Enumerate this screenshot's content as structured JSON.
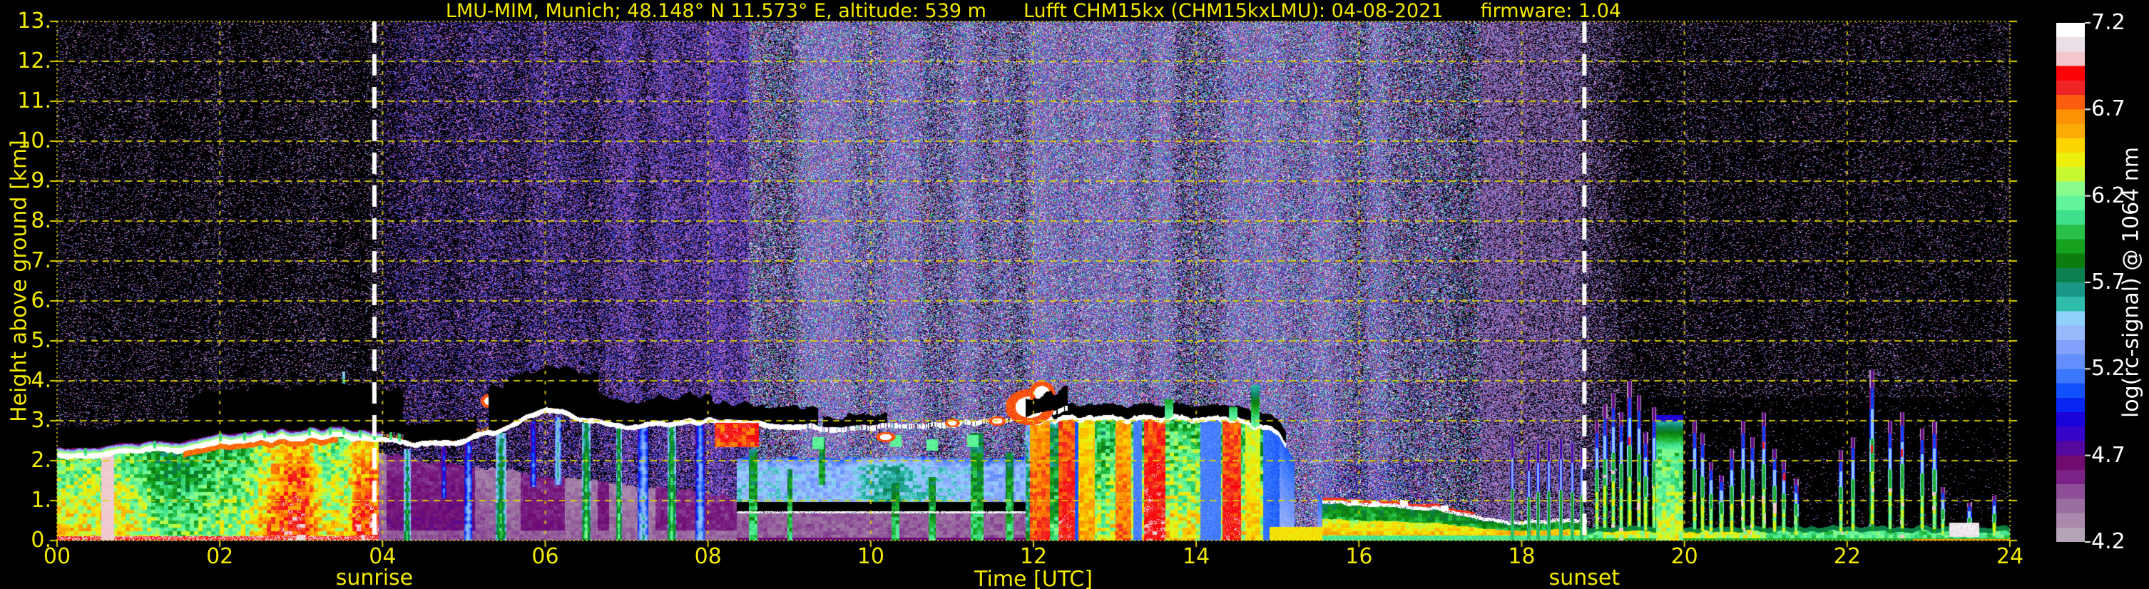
{
  "header": {
    "title_parts": [
      "LMU-MIM, Munich; 48.148° N 11.573° E, altitude: 539 m",
      "Lufft CHM15kx (CHM15kxLMU): 04-08-2021",
      "firmware: 1.04"
    ]
  },
  "axes": {
    "x_label": "Time [UTC]",
    "x_ticks": [
      "00",
      "02",
      "04",
      "06",
      "08",
      "10",
      "12",
      "14",
      "16",
      "18",
      "20",
      "22",
      "24"
    ],
    "x_range_hours": [
      0,
      24
    ],
    "y_label": "Height above ground [km]",
    "y_ticks": [
      "0.",
      "1.",
      "2.",
      "3.",
      "4.",
      "5.",
      "6.",
      "7.",
      "8.",
      "9.",
      "10.",
      "11.",
      "12.",
      "13."
    ],
    "y_range_km": [
      0,
      13
    ],
    "grid": "dashed yellow, 2 h vertical / 1 km horizontal"
  },
  "annotations": {
    "sunrise_label": "sunrise",
    "sunrise_time_utc": 3.9,
    "sunset_label": "sunset",
    "sunset_time_utc": 18.77
  },
  "colorbar": {
    "label": "log(rc-signal) @ 1064 nm",
    "tick_labels": [
      "7.2",
      "6.7",
      "6.2",
      "5.7",
      "5.2",
      "4.7",
      "4.2"
    ],
    "tick_values": [
      7.2,
      6.7,
      6.2,
      5.7,
      5.2,
      4.7,
      4.2
    ],
    "range": [
      4.2,
      7.2
    ],
    "palette_low_to_high": [
      "#b5a3b7",
      "#a98aad",
      "#9b6ea1",
      "#8d4e97",
      "#7b2287",
      "#700c6e",
      "#55089e",
      "#3604c8",
      "#1a02da",
      "#0726f2",
      "#1150fa",
      "#3a77fd",
      "#638ffd",
      "#82a1fd",
      "#98b9fc",
      "#8ed2fc",
      "#2fbcaa",
      "#1b9787",
      "#0d8050",
      "#0c7c10",
      "#15a01e",
      "#28c048",
      "#3fe08c",
      "#62f49a",
      "#8afc8c",
      "#c8f830",
      "#ecf00c",
      "#fcd400",
      "#fbab06",
      "#fb9203",
      "#fb5c0d",
      "#ef2426",
      "#fb0307",
      "#f2c6cb",
      "#e9dfe7",
      "#ffffff"
    ]
  },
  "colors": {
    "background": "#000000",
    "axis_text": "#f2e900",
    "grid": "#e0d400",
    "colorbar_text": "#ffffff",
    "sun_line": "#ffffff"
  },
  "chart_data": {
    "type": "heatmap",
    "title": "Ceilometer attenuated backscatter quicklook, Munich, 04-08-2021",
    "xlabel": "Time [UTC]",
    "ylabel": "Height above ground [km]",
    "xlim": [
      0,
      24
    ],
    "ylim": [
      0,
      13
    ],
    "value_label": "log(rc-signal) @ 1064 nm",
    "value_range": [
      4.2,
      7.2
    ],
    "mixed_layer_top": {
      "t": [
        0,
        0.5,
        1,
        1.5,
        2,
        2.5,
        3,
        3.5,
        3.95
      ],
      "top_km": [
        2.15,
        2.2,
        2.3,
        2.35,
        2.5,
        2.55,
        2.6,
        2.62,
        2.6
      ]
    },
    "haze_top": {
      "t": [
        3.95,
        4.5,
        5.5,
        6.5,
        7.5,
        8.35
      ],
      "top_km": [
        2.25,
        2.0,
        1.75,
        1.5,
        1.3,
        1.1
      ]
    },
    "cloud_base": {
      "t": [
        0,
        0.5,
        1,
        1.5,
        2,
        2.5,
        3,
        3.5,
        4,
        4.3,
        4.7,
        5,
        5.4,
        5.7,
        6,
        6.2,
        6.5,
        7,
        7.3,
        7.7,
        8,
        8.4,
        8.8,
        9.2,
        9.6,
        10,
        10.4,
        10.8,
        11.2,
        11.6,
        12,
        12.2,
        12.4
      ],
      "base_km": [
        2.1,
        2.15,
        2.25,
        2.3,
        2.5,
        2.55,
        2.6,
        2.62,
        2.5,
        2.45,
        2.4,
        2.5,
        2.75,
        3.0,
        3.3,
        3.25,
        3.0,
        2.85,
        2.9,
        2.95,
        3.0,
        2.95,
        2.9,
        2.85,
        2.8,
        2.85,
        2.9,
        2.9,
        2.95,
        3.0,
        3.1,
        3.2,
        3.3
      ]
    },
    "attenuation_zones": [
      [
        0.0,
        1.6,
        0.7
      ],
      [
        1.6,
        4.25,
        1.3
      ],
      [
        4.25,
        5.15,
        0.55
      ],
      [
        5.3,
        6.65,
        1.15
      ],
      [
        6.65,
        8.05,
        0.65
      ],
      [
        8.05,
        9.35,
        0.5
      ],
      [
        9.4,
        10.2,
        0.32
      ],
      [
        11.9,
        12.45,
        0.5
      ]
    ],
    "spires": [
      [
        0.35,
        2.5
      ],
      [
        1.2,
        2.6
      ],
      [
        2.0,
        2.9
      ],
      [
        2.3,
        3.0
      ],
      [
        2.55,
        3.05
      ],
      [
        3.1,
        3.35
      ],
      [
        3.35,
        3.0
      ],
      [
        3.52,
        4.25
      ],
      [
        3.72,
        3.0
      ],
      [
        3.9,
        3.45
      ],
      [
        4.1,
        3.4
      ],
      [
        4.2,
        2.85
      ]
    ],
    "virga": [
      [
        4.3,
        0.09,
        2.3,
        6.0,
        1
      ],
      [
        4.75,
        0.07,
        2.35,
        5.35,
        0
      ],
      [
        5.05,
        0.1,
        2.5,
        5.5,
        1
      ],
      [
        5.45,
        0.13,
        2.7,
        6.05,
        1
      ],
      [
        5.85,
        0.08,
        3.0,
        5.4,
        0
      ],
      [
        6.15,
        0.08,
        3.1,
        5.8,
        0
      ],
      [
        6.5,
        0.11,
        2.95,
        6.15,
        1
      ],
      [
        6.9,
        0.07,
        2.85,
        6.2,
        1
      ],
      [
        7.2,
        0.13,
        2.85,
        5.6,
        1
      ],
      [
        7.55,
        0.11,
        2.9,
        6.15,
        1
      ],
      [
        7.9,
        0.11,
        2.95,
        5.5,
        1
      ]
    ],
    "cloud_blobs": [
      [
        5.32,
        3.5,
        0.12,
        0.18
      ],
      [
        5.55,
        3.62,
        0.1,
        0.15
      ],
      [
        10.18,
        2.6,
        0.12,
        0.13
      ],
      [
        11.0,
        2.95,
        0.09,
        0.11
      ],
      [
        11.55,
        3.0,
        0.11,
        0.12
      ],
      [
        11.95,
        3.35,
        0.3,
        0.45
      ],
      [
        12.1,
        3.7,
        0.16,
        0.3
      ]
    ],
    "red_cloud": [
      8.08,
      8.62,
      2.35,
      3.02
    ],
    "green_patches": [
      [
        9.35,
        2.55
      ],
      [
        10.3,
        2.6
      ],
      [
        10.75,
        2.5
      ],
      [
        11.25,
        2.6
      ]
    ],
    "morning_columns": [
      [
        8.55,
        0.1,
        2.3,
        0
      ],
      [
        9.0,
        0.06,
        1.8,
        0
      ],
      [
        9.4,
        0.08,
        2.6,
        1.4
      ],
      [
        10.3,
        0.1,
        1.45,
        0
      ],
      [
        10.75,
        0.09,
        1.6,
        0
      ],
      [
        11.3,
        0.16,
        2.7,
        0
      ],
      [
        11.7,
        0.1,
        2.2,
        0
      ]
    ],
    "morning_layers": {
      "blue_top": 2.08,
      "blue_bot": 0.98,
      "black_top": 0.98,
      "black_bot": 0.75,
      "white_line": 0.72,
      "mauve_top": 0.68
    },
    "convective": {
      "top": {
        "t": [
          11.9,
          12.5,
          13.5,
          14.5,
          15.0,
          15.3,
          15.55
        ],
        "top_km": [
          3.0,
          3.05,
          3.05,
          3.05,
          2.7,
          1.7,
          1.0
        ]
      },
      "cores": [
        [
          11.95,
          12.2,
          6.78
        ],
        [
          12.3,
          12.5,
          6.88
        ],
        [
          12.55,
          12.75,
          6.6
        ],
        [
          13.0,
          13.2,
          6.72
        ],
        [
          13.35,
          13.62,
          6.92
        ],
        [
          14.32,
          14.55,
          6.88
        ],
        [
          14.6,
          14.78,
          6.5
        ]
      ],
      "gaps": [
        [
          12.5,
          12.56
        ],
        [
          13.22,
          13.33
        ],
        [
          14.05,
          14.3
        ],
        [
          14.82,
          15.02
        ],
        [
          15.2,
          15.48
        ]
      ],
      "towers": [
        [
          12.05,
          3.6
        ],
        [
          13.66,
          3.55
        ],
        [
          14.45,
          3.35
        ],
        [
          14.72,
          3.9
        ]
      ]
    },
    "evening": {
      "top": {
        "t": [
          15.55,
          16,
          16.5,
          17,
          17.4,
          17.7,
          18,
          18.3,
          18.6,
          18.8
        ],
        "top_km": [
          1.0,
          0.92,
          0.88,
          0.8,
          0.62,
          0.5,
          0.48,
          0.5,
          0.52,
          0.5
        ]
      },
      "white_flecks": [
        [
          15.95,
          0.95
        ],
        [
          16.2,
          0.92
        ],
        [
          16.55,
          0.95
        ],
        [
          17.05,
          0.82
        ]
      ],
      "spikes": [
        [
          17.88,
          2.6
        ],
        [
          18.08,
          2.2
        ],
        [
          18.2,
          2.45
        ],
        [
          18.33,
          2.5
        ],
        [
          18.48,
          2.55
        ],
        [
          18.62,
          2.45
        ],
        [
          18.73,
          2.3
        ]
      ]
    },
    "night": {
      "plumes": [
        [
          18.92,
          2.9,
          0
        ],
        [
          19.02,
          3.3,
          0
        ],
        [
          19.12,
          3.55,
          0
        ],
        [
          19.22,
          3.1,
          0
        ],
        [
          19.32,
          3.85,
          2.5
        ],
        [
          19.44,
          3.5,
          0
        ],
        [
          19.52,
          2.6,
          0
        ],
        [
          19.62,
          3.2,
          0
        ],
        [
          20.12,
          2.9,
          0
        ],
        [
          20.22,
          2.6,
          0
        ],
        [
          20.32,
          1.9,
          0
        ],
        [
          20.45,
          1.6,
          0
        ],
        [
          20.58,
          2.2,
          0
        ],
        [
          20.72,
          2.9,
          0
        ],
        [
          20.83,
          2.5,
          0
        ],
        [
          20.97,
          3.1,
          2.4
        ],
        [
          21.1,
          2.2,
          0
        ],
        [
          21.22,
          1.9,
          1.6
        ],
        [
          21.37,
          1.5,
          0
        ],
        [
          21.92,
          2.2,
          0
        ],
        [
          22.07,
          2.5,
          0
        ],
        [
          22.3,
          4.1,
          2.3
        ],
        [
          22.52,
          2.9,
          0
        ],
        [
          22.67,
          3.1,
          2.2
        ],
        [
          22.92,
          2.7,
          0
        ],
        [
          23.07,
          2.9,
          0
        ],
        [
          23.17,
          1.3,
          0
        ],
        [
          23.5,
          0.9,
          0
        ],
        [
          23.8,
          1.1,
          0
        ]
      ],
      "warm_plume": [
        19.65,
        19.98,
        3.0,
        2.3
      ],
      "gray_patch": [
        23.25,
        23.62,
        0.1,
        0.45
      ],
      "surface_red_line": [
        22.8,
        24.0,
        0.05
      ]
    },
    "noise": {
      "t": [
        0,
        3.8,
        4.5,
        8,
        9.5,
        16,
        17.5,
        18,
        18.45,
        18.8,
        19.5,
        24
      ],
      "density": [
        0.1,
        0.12,
        0.3,
        0.55,
        0.85,
        0.88,
        0.55,
        0.5,
        0.55,
        0.3,
        0.1,
        0.08
      ]
    }
  }
}
